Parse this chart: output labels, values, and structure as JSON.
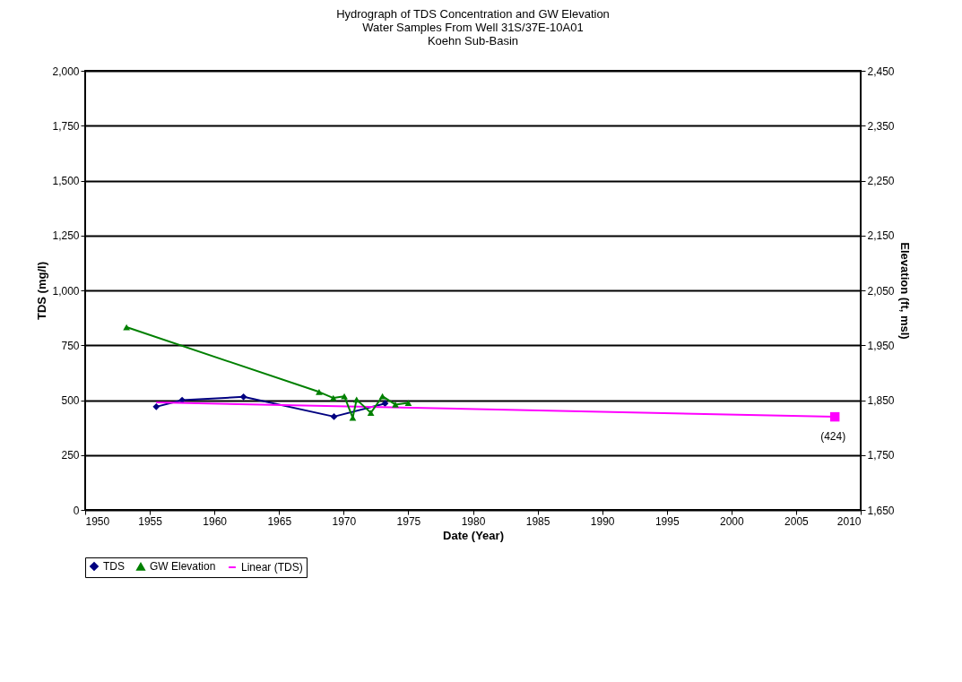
{
  "chart_data": {
    "type": "line",
    "title": "Hydrograph of TDS Concentration and GW Elevation",
    "subtitle": "Water Samples From Well 31S/37E-10A01\nKoehn Sub-Basin",
    "xlabel": "Date (Year)",
    "ylabel": "TDS (mg/l)",
    "y2label": "Elevation (ft, msl)",
    "series": [
      {
        "name": "TDS",
        "color": "#000080",
        "marker": "diamond",
        "x": [
          1955.5,
          1957.5,
          1962.25,
          1969.25,
          1973.2
        ],
        "values": [
          470,
          500,
          515,
          425,
          485
        ]
      },
      {
        "name": "GW Elevation",
        "color": "#008000",
        "marker": "triangle",
        "axis": "y2",
        "x": [
          1953.2,
          1968.1,
          1969.2,
          1970.05,
          1970.7,
          1971.0,
          1972.1,
          1973.0,
          1974.0,
          1975.0
        ],
        "values": [
          1983,
          1865,
          1854,
          1857,
          1818,
          1851,
          1827,
          1857,
          1842,
          1845
        ]
      },
      {
        "name": "Linear (TDS)",
        "color": "#ff00ff",
        "marker": "none",
        "x": [
          1955.5,
          2008
        ],
        "values": [
          490,
          424
        ]
      },
      {
        "type": "scatter",
        "color": "#ff00ff",
        "marker": "square",
        "x": [
          2008
        ],
        "values": [
          424
        ]
      }
    ],
    "annotations": [
      {
        "text": "(424)",
        "x": 2008,
        "y": 424
      }
    ],
    "xlim": [
      1950,
      2010
    ],
    "xticks": [
      1950,
      1955,
      1960,
      1965,
      1970,
      1975,
      1980,
      1985,
      1990,
      1995,
      2000,
      2005,
      2010
    ],
    "ylim": [
      0,
      2000
    ],
    "yticks": [
      0,
      250,
      500,
      750,
      {
        "value": 1000,
        "label": "1,000"
      },
      {
        "value": 1250,
        "label": "1,250"
      },
      {
        "value": 1500,
        "label": "1,500"
      },
      {
        "value": 1750,
        "label": "1,750"
      },
      {
        "value": 2000,
        "label": "2,000"
      }
    ],
    "y2lim": [
      1650,
      2450
    ],
    "y2ticks": [
      {
        "value": 1650,
        "label": "1,650"
      },
      {
        "value": 1750,
        "label": "1,750"
      },
      {
        "value": 1850,
        "label": "1,850"
      },
      {
        "value": 1950,
        "label": "1,950"
      },
      {
        "value": 2050,
        "label": "2,050"
      },
      {
        "value": 2150,
        "label": "2,150"
      },
      {
        "value": 2250,
        "label": "2,250"
      },
      {
        "value": 2350,
        "label": "2,350"
      },
      {
        "value": 2450,
        "label": "2,450"
      }
    ],
    "grid": "y",
    "legend": "bottom"
  }
}
